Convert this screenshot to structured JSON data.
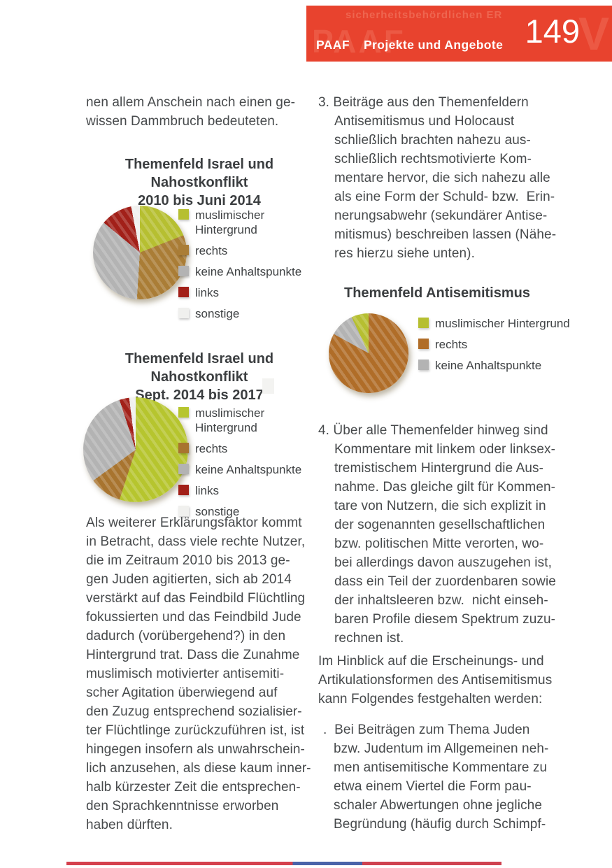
{
  "header": {
    "brand": "PAAF",
    "section": "Projekte und Angebote",
    "page_number": "149",
    "bg_color": "#e8432e",
    "watermark": {
      "line": "sicherheitsbehördlichen ER",
      "brand": "PAAF",
      "letter": "V"
    }
  },
  "left_column": {
    "intro_lines": [
      "nen allem Anschein nach einen ge-",
      "wissen Dammbruch bedeuteten."
    ],
    "paragraph_lines": [
      "Als weiterer Erklärungsfaktor kommt",
      "in Betracht, dass viele rechte Nutzer,",
      "die im Zeitraum 2010 bis 2013 ge-",
      "gen Juden agitierten, sich ab 2014",
      "verstärkt auf das Feindbild Flüchtling",
      "fokussierten und das Feindbild Jude",
      "dadurch (vorübergehend?) in den",
      "Hintergrund trat. Dass die Zunahme",
      "muslimisch motivierter antisemiti-",
      "scher Agitation überwiegend auf",
      "den Zuzug entsprechend sozialisier-",
      "ter Flüchtlinge zurückzuführen ist, ist",
      "hingegen insofern als unwahrschein-",
      "lich anzusehen, als diese kaum inner-",
      "halb kürzester Zeit die entsprechen-",
      "den Sprachkenntnisse erworben",
      "haben dürften."
    ]
  },
  "right_column": {
    "item3_lines": [
      "3. Beiträge aus den Themenfeldern",
      "Antisemitismus und Holocaust",
      "schließlich brachten nahezu aus-",
      "schließlich rechtsmotivierte Kom-",
      "mentare hervor, die sich nahezu alle",
      "als eine Form der Schuld- bzw.  Erin-",
      "nerungsabwehr (sekundärer Antise-",
      "mitismus) beschreiben lassen (Nähe-",
      "res hierzu siehe unten)."
    ],
    "item4_lines": [
      "4. Über alle Themenfelder hinweg sind",
      "Kommentare mit linkem oder linksex-",
      "tremistischem Hintergrund die Aus-",
      "nahme. Das gleiche gilt für Kommen-",
      "tare von Nutzern, die sich explizit in",
      "der sogenannten gesellschaftlichen",
      "bzw. politischen Mitte verorten, wo-",
      "bei allerdings davon auszugehen ist,",
      "dass ein Teil der zuordenbaren sowie",
      "der inhaltsleeren bzw.  nicht einseh-",
      "baren Profile diesem Spektrum zuzu-",
      "rechnen ist."
    ],
    "paragraph_lines": [
      "Im Hinblick auf die Erscheinungs- und",
      "Artikulationsformen des Antisemitismus",
      "kann Folgendes festgehalten werden:"
    ],
    "bullet_lines": [
      ".  Bei Beiträgen zum Thema Juden",
      "bzw. Judentum im Allgemeinen neh-",
      "men antisemitische Kommentare zu",
      "etwa einem Viertel die Form pau-",
      "schaler Abwertungen ohne jegliche",
      "Begründung (häufig durch Schimpf-"
    ]
  },
  "chart_data": [
    {
      "type": "pie",
      "title": "Themenfeld Israel und Nahostkonflikt 2010 bis Juni 2014",
      "title_lines": [
        "Themenfeld Israel und",
        "Nahostkonflikt",
        "2010 bis Juni 2014"
      ],
      "slices": [
        {
          "label": "muslimischer Hintergrund",
          "value": 19,
          "color": "#b6bf31"
        },
        {
          "label": "rechts",
          "value": 32,
          "color": "#aa7d36"
        },
        {
          "label": "keine Anhaltspunkte",
          "value": 35,
          "color": "#b3b3b3"
        },
        {
          "label": "links",
          "value": 11,
          "color": "#a22019"
        },
        {
          "label": "sonstige",
          "value": 3,
          "color": "#f0f0ee"
        }
      ],
      "legend": [
        {
          "label": "muslimischer Hintergrund",
          "color": "#b6bf31"
        },
        {
          "label": "rechts",
          "color": "#aa7d36"
        },
        {
          "label": "keine Anhaltspunkte",
          "color": "#b3b3b3"
        },
        {
          "label": "links",
          "color": "#a22019"
        },
        {
          "label": "sonstige",
          "color": "#f0f0ee"
        }
      ],
      "legend_position": "right",
      "values_note": "percent, estimated from slice angles"
    },
    {
      "type": "pie",
      "title": "Themenfeld Israel und Nahostkonflikt Sept. 2014 bis 2017",
      "title_lines": [
        "Themenfeld Israel und",
        "Nahostkonflikt",
        "Sept. 2014 bis 2017"
      ],
      "slices": [
        {
          "label": "muslimischer Hintergrund",
          "value": 55,
          "color": "#b6c52e"
        },
        {
          "label": "rechts",
          "value": 10,
          "color": "#a8742f"
        },
        {
          "label": "keine Anhaltspunkte",
          "value": 30,
          "color": "#b3b3b3"
        },
        {
          "label": "links",
          "value": 3,
          "color": "#a22019"
        },
        {
          "label": "sonstige",
          "value": 2,
          "color": "#f0f0ee"
        }
      ],
      "legend": [
        {
          "label": "muslimischer Hintergrund",
          "color": "#b6c52e"
        },
        {
          "label": "rechts",
          "color": "#a8742f"
        },
        {
          "label": "keine Anhaltspunkte",
          "color": "#b3b3b3"
        },
        {
          "label": "links",
          "color": "#a22019"
        },
        {
          "label": "sonstige",
          "color": "#f0f0ee"
        }
      ],
      "legend_position": "right",
      "values_note": "percent, estimated from slice angles"
    },
    {
      "type": "pie",
      "title": "Themenfeld Antisemitismus",
      "title_lines": [
        "Themenfeld Antisemitismus"
      ],
      "slices": [
        {
          "label": "rechts",
          "value": 83,
          "color": "#b06d28"
        },
        {
          "label": "keine Anhaltspunkte",
          "value": 10,
          "color": "#b3b3b3"
        },
        {
          "label": "muslimischer Hintergrund",
          "value": 7,
          "color": "#b6bf31"
        }
      ],
      "legend": [
        {
          "label": "muslimischer Hintergrund",
          "color": "#b6bf31"
        },
        {
          "label": "rechts",
          "color": "#b06d28"
        },
        {
          "label": "keine Anhaltspunkte",
          "color": "#b3b3b3"
        }
      ],
      "legend_position": "right",
      "values_note": "percent, estimated from slice angles"
    }
  ],
  "footer": {
    "segments": [
      {
        "color": "#d5414d",
        "pct": 52
      },
      {
        "color": "#4a63a9",
        "pct": 16
      },
      {
        "color": "#cf4250",
        "pct": 32
      }
    ]
  },
  "colors": {
    "header_red": "#e8432e",
    "body_text": "#474a4c",
    "chart_green": "#b6bf31",
    "chart_brown": "#aa7d36",
    "chart_brown_orange": "#b06d28",
    "chart_gray": "#b3b3b3",
    "chart_dark_red": "#a22019",
    "chart_offwhite": "#f0f0ee"
  }
}
